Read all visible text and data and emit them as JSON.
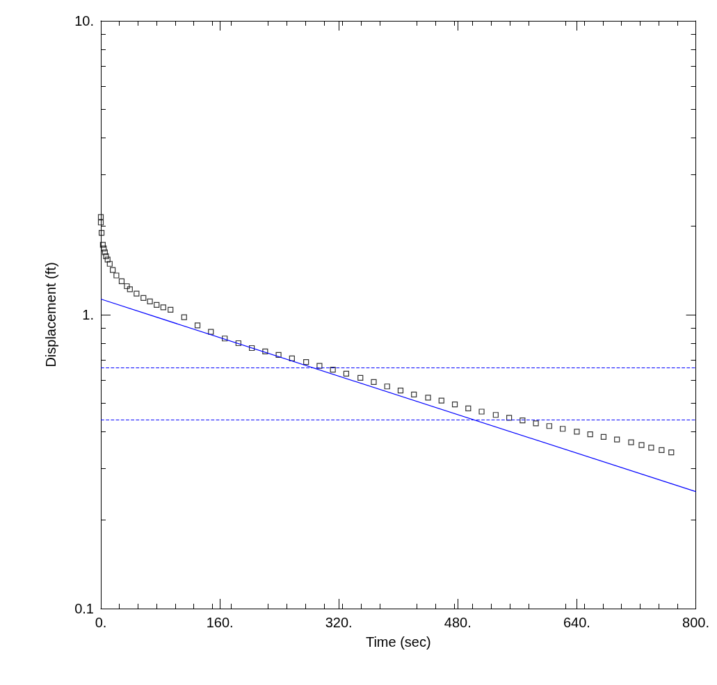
{
  "chart_data": {
    "type": "scatter",
    "xlabel": "Time (sec)",
    "ylabel": "Displacement (ft)",
    "xlim": [
      0,
      800
    ],
    "ylim": [
      0.1,
      10
    ],
    "log": "y",
    "xticks": [
      {
        "value": 0,
        "label": "0."
      },
      {
        "value": 160,
        "label": "160."
      },
      {
        "value": 320,
        "label": "320."
      },
      {
        "value": 480,
        "label": "480."
      },
      {
        "value": 640,
        "label": "640."
      },
      {
        "value": 800,
        "label": "800."
      }
    ],
    "yticks": [
      0.1,
      {
        "value": 1,
        "label": "1."
      },
      {
        "value": 10,
        "label": "10."
      }
    ],
    "grid": false,
    "series": [
      {
        "color": "#000000",
        "marker": "square",
        "x": [
          0,
          0,
          1,
          2.7,
          4,
          5.5,
          7,
          9.1,
          12,
          16,
          20.9,
          28,
          35,
          39.1,
          48,
          57.3,
          66,
          75,
          84,
          93.7,
          112,
          130,
          148,
          166.6,
          185,
          203,
          221,
          239,
          257,
          276,
          294,
          312,
          330,
          349,
          367,
          385,
          403,
          421,
          440,
          458,
          476,
          494,
          512,
          531,
          549,
          567,
          585,
          603,
          621,
          640,
          658,
          676,
          694,
          713,
          727,
          740,
          754,
          767
        ],
        "values": [
          2.15,
          2.06,
          1.9,
          1.73,
          1.68,
          1.63,
          1.58,
          1.54,
          1.49,
          1.42,
          1.36,
          1.3,
          1.25,
          1.22,
          1.18,
          1.14,
          1.11,
          1.08,
          1.06,
          1.04,
          0.98,
          0.92,
          0.875,
          0.83,
          0.8,
          0.77,
          0.75,
          0.73,
          0.71,
          0.69,
          0.67,
          0.65,
          0.63,
          0.61,
          0.59,
          0.57,
          0.552,
          0.535,
          0.522,
          0.51,
          0.495,
          0.48,
          0.468,
          0.456,
          0.446,
          0.437,
          0.427,
          0.418,
          0.409,
          0.4,
          0.392,
          0.384,
          0.376,
          0.368,
          0.36,
          0.353,
          0.346,
          0.34
        ]
      },
      {
        "type": "line",
        "color": "#0000ff",
        "marker": "none",
        "line_style": "solid",
        "x": [
          0,
          800
        ],
        "values": [
          1.13,
          0.25
        ]
      }
    ],
    "ref_lines": [
      {
        "axis": "y",
        "value": 0.66,
        "color": "#0000ff",
        "line_style": "dashed"
      },
      {
        "axis": "y",
        "value": 0.44,
        "color": "#0000ff",
        "line_style": "dashed"
      }
    ]
  }
}
